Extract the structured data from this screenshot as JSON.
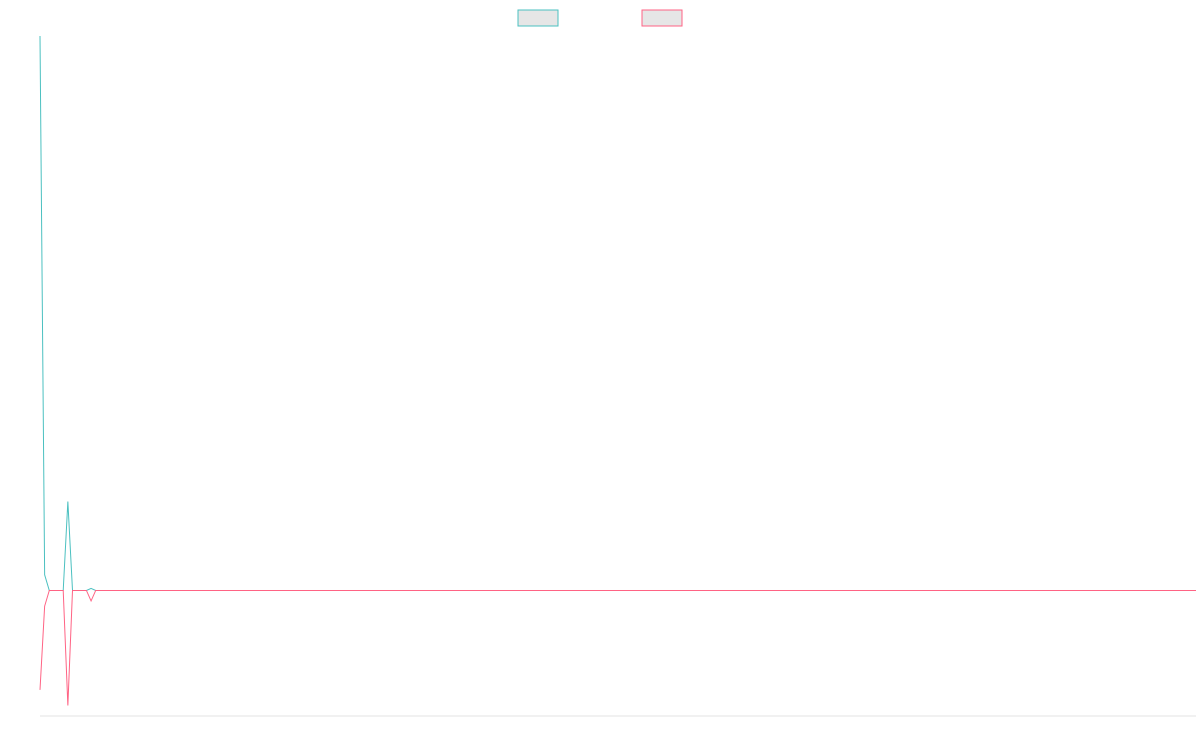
{
  "chart_data": {
    "type": "line",
    "title": "",
    "xlabel": "",
    "ylabel": "",
    "legend_position": "top-center",
    "grid": false,
    "axes_visible": false,
    "x_count": 250,
    "ylim": [
      -1.2,
      5.3
    ],
    "series": [
      {
        "name": "",
        "color": "#4bc0c0",
        "fill": "#e6e6e6",
        "values": [
          5.3,
          0.15,
          0,
          0,
          0,
          0,
          0.85,
          0,
          0,
          0,
          0,
          0.02,
          0,
          0,
          0
        ]
      },
      {
        "name": "",
        "color": "#ff6384",
        "fill": "#e6e6e6",
        "values": [
          -0.95,
          -0.15,
          0,
          0,
          0,
          0,
          -1.1,
          0,
          0,
          0,
          0,
          -0.1,
          0,
          0,
          0
        ]
      }
    ]
  }
}
